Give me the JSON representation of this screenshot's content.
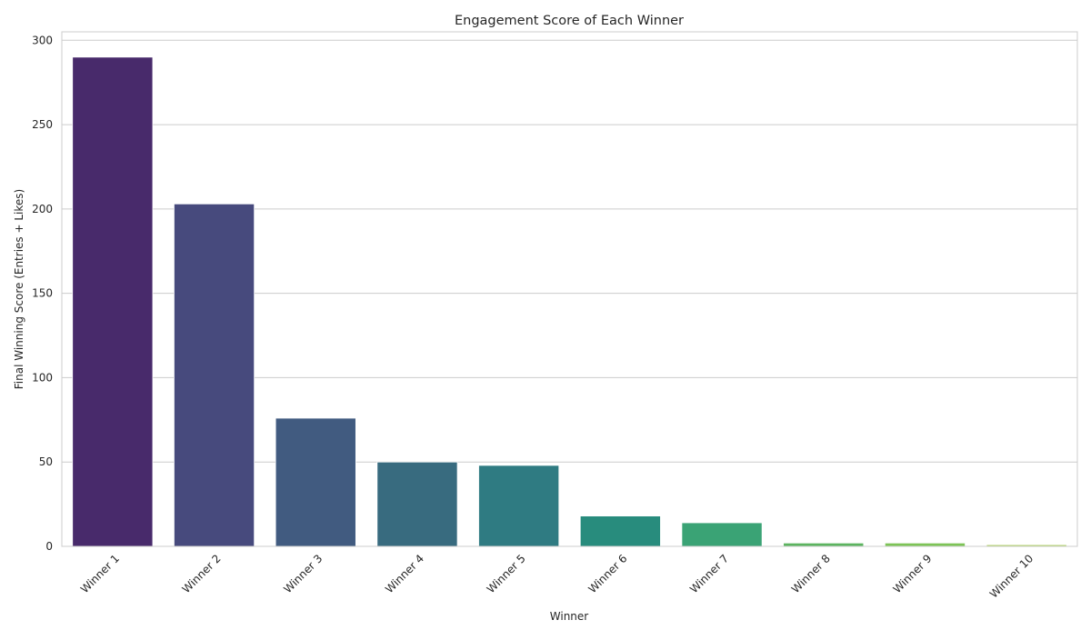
{
  "chart_data": {
    "type": "bar",
    "title": "Engagement Score of Each Winner",
    "xlabel": "Winner",
    "ylabel": "Final Winning Score (Entries + Likes)",
    "categories": [
      "Winner 1",
      "Winner 2",
      "Winner 3",
      "Winner 4",
      "Winner 5",
      "Winner 6",
      "Winner 7",
      "Winner 8",
      "Winner 9",
      "Winner 10"
    ],
    "values": [
      290,
      203,
      76,
      50,
      48,
      18,
      14,
      2,
      2,
      1
    ],
    "ylim": [
      0,
      305
    ],
    "yticks": [
      0,
      50,
      100,
      150,
      200,
      250,
      300
    ],
    "grid": true,
    "legend": "none",
    "colors": [
      "#482a6b",
      "#474a7d",
      "#415b80",
      "#386b7f",
      "#2f7b82",
      "#288c7d",
      "#3aa375",
      "#5cb45f",
      "#7dc456",
      "#b0d35f"
    ],
    "grid_color": "#cccccc",
    "axes_color": "#cccccc"
  }
}
